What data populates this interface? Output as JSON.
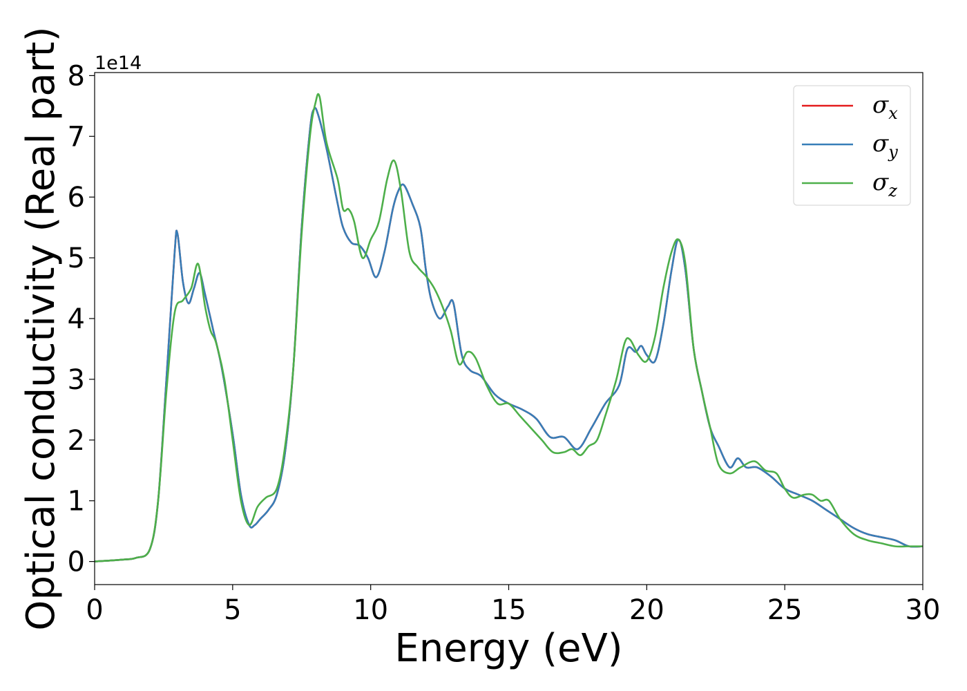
{
  "chart_data": {
    "type": "line",
    "xlabel": "Energy (eV)",
    "ylabel": "Optical conductivity (Real part)",
    "y_offset_label": "1e14",
    "xlim": [
      0,
      30
    ],
    "ylim": [
      -0.38,
      8.05
    ],
    "x_ticks": [
      0,
      5,
      10,
      15,
      20,
      25,
      30
    ],
    "y_ticks": [
      0,
      1,
      2,
      3,
      4,
      5,
      6,
      7,
      8
    ],
    "grid": false,
    "legend_position": "top-right",
    "series": [
      {
        "name": "σx",
        "symbol": "σ",
        "subscript": "x",
        "color": "#e41a1c",
        "x": [
          0,
          1,
          1.5,
          2,
          2.3,
          2.6,
          2.9,
          3.0,
          3.2,
          3.4,
          3.6,
          3.8,
          4.0,
          4.3,
          4.6,
          5.0,
          5.3,
          5.6,
          5.8,
          6.0,
          6.3,
          6.6,
          6.9,
          7.2,
          7.5,
          7.8,
          7.95,
          8.1,
          8.4,
          8.8,
          9.0,
          9.3,
          9.6,
          9.9,
          10.2,
          10.5,
          10.8,
          11.0,
          11.2,
          11.5,
          11.8,
          12.0,
          12.2,
          12.5,
          12.8,
          13.0,
          13.3,
          13.6,
          14.0,
          14.5,
          15.0,
          15.5,
          16.0,
          16.5,
          17.0,
          17.5,
          18.0,
          18.5,
          19.0,
          19.3,
          19.6,
          19.8,
          20.0,
          20.3,
          20.6,
          20.9,
          21.15,
          21.4,
          21.7,
          22.0,
          22.3,
          22.6,
          23.0,
          23.3,
          23.6,
          24.0,
          24.5,
          25.0,
          25.5,
          26.0,
          26.5,
          27.0,
          27.5,
          28.0,
          28.5,
          29.0,
          29.5,
          30.0
        ],
        "values": [
          0,
          0.03,
          0.06,
          0.2,
          1.0,
          3.0,
          5.1,
          5.4,
          4.6,
          4.25,
          4.5,
          4.75,
          4.4,
          3.8,
          3.2,
          2.1,
          1.1,
          0.6,
          0.6,
          0.7,
          0.85,
          1.1,
          1.8,
          3.2,
          5.5,
          7.1,
          7.45,
          7.35,
          6.8,
          5.9,
          5.5,
          5.25,
          5.2,
          5.0,
          4.68,
          5.1,
          5.8,
          6.1,
          6.2,
          5.9,
          5.5,
          4.8,
          4.3,
          4.0,
          4.2,
          4.25,
          3.4,
          3.15,
          3.05,
          2.75,
          2.6,
          2.5,
          2.35,
          2.05,
          2.05,
          1.85,
          2.2,
          2.6,
          2.9,
          3.5,
          3.45,
          3.55,
          3.4,
          3.3,
          3.9,
          4.8,
          5.3,
          4.8,
          3.5,
          2.8,
          2.2,
          1.9,
          1.55,
          1.7,
          1.55,
          1.55,
          1.4,
          1.2,
          1.1,
          1.0,
          0.85,
          0.7,
          0.55,
          0.45,
          0.4,
          0.35,
          0.25,
          0.25
        ]
      },
      {
        "name": "σy",
        "symbol": "σ",
        "subscript": "y",
        "color": "#377eb8",
        "x": [
          0,
          1,
          1.5,
          2,
          2.3,
          2.6,
          2.9,
          3.0,
          3.2,
          3.4,
          3.6,
          3.8,
          4.0,
          4.3,
          4.6,
          5.0,
          5.3,
          5.6,
          5.8,
          6.0,
          6.3,
          6.6,
          6.9,
          7.2,
          7.5,
          7.8,
          7.95,
          8.1,
          8.4,
          8.8,
          9.0,
          9.3,
          9.6,
          9.9,
          10.2,
          10.5,
          10.8,
          11.0,
          11.2,
          11.5,
          11.8,
          12.0,
          12.2,
          12.5,
          12.8,
          13.0,
          13.3,
          13.6,
          14.0,
          14.5,
          15.0,
          15.5,
          16.0,
          16.5,
          17.0,
          17.5,
          18.0,
          18.5,
          19.0,
          19.3,
          19.6,
          19.8,
          20.0,
          20.3,
          20.6,
          20.9,
          21.15,
          21.4,
          21.7,
          22.0,
          22.3,
          22.6,
          23.0,
          23.3,
          23.6,
          24.0,
          24.5,
          25.0,
          25.5,
          26.0,
          26.5,
          27.0,
          27.5,
          28.0,
          28.5,
          29.0,
          29.5,
          30.0
        ],
        "values": [
          0,
          0.03,
          0.06,
          0.2,
          1.0,
          3.0,
          5.1,
          5.4,
          4.6,
          4.25,
          4.5,
          4.75,
          4.4,
          3.8,
          3.2,
          2.1,
          1.1,
          0.6,
          0.6,
          0.7,
          0.85,
          1.1,
          1.8,
          3.2,
          5.5,
          7.1,
          7.45,
          7.35,
          6.8,
          5.9,
          5.5,
          5.25,
          5.2,
          5.0,
          4.68,
          5.1,
          5.8,
          6.1,
          6.2,
          5.9,
          5.5,
          4.8,
          4.3,
          4.0,
          4.2,
          4.25,
          3.4,
          3.15,
          3.05,
          2.75,
          2.6,
          2.5,
          2.35,
          2.05,
          2.05,
          1.85,
          2.2,
          2.6,
          2.9,
          3.5,
          3.45,
          3.55,
          3.4,
          3.3,
          3.9,
          4.8,
          5.3,
          4.8,
          3.5,
          2.8,
          2.2,
          1.9,
          1.55,
          1.7,
          1.55,
          1.55,
          1.4,
          1.2,
          1.1,
          1.0,
          0.85,
          0.7,
          0.55,
          0.45,
          0.4,
          0.35,
          0.25,
          0.25
        ]
      },
      {
        "name": "σz",
        "symbol": "σ",
        "subscript": "z",
        "color": "#4daf4a",
        "x": [
          0,
          1,
          1.5,
          2,
          2.3,
          2.6,
          2.9,
          3.2,
          3.5,
          3.75,
          4.0,
          4.2,
          4.4,
          4.7,
          5.0,
          5.3,
          5.6,
          5.9,
          6.2,
          6.6,
          6.9,
          7.2,
          7.5,
          7.8,
          8.0,
          8.15,
          8.4,
          8.8,
          9.0,
          9.2,
          9.4,
          9.7,
          10.0,
          10.3,
          10.6,
          10.85,
          11.1,
          11.4,
          11.7,
          12.0,
          12.3,
          12.6,
          12.9,
          13.2,
          13.5,
          13.8,
          14.2,
          14.6,
          15.0,
          15.4,
          15.8,
          16.2,
          16.6,
          17.0,
          17.3,
          17.6,
          17.9,
          18.2,
          18.5,
          18.9,
          19.2,
          19.4,
          19.7,
          20.0,
          20.3,
          20.6,
          20.9,
          21.15,
          21.4,
          21.7,
          22.0,
          22.3,
          22.6,
          23.0,
          23.4,
          23.9,
          24.3,
          24.7,
          25.0,
          25.3,
          25.7,
          26.0,
          26.3,
          26.6,
          27.0,
          27.5,
          28.0,
          28.5,
          29.0,
          29.5,
          30.0
        ],
        "values": [
          0,
          0.03,
          0.06,
          0.2,
          1.0,
          2.8,
          4.1,
          4.3,
          4.5,
          4.9,
          4.2,
          3.8,
          3.6,
          3.0,
          2.0,
          1.0,
          0.6,
          0.9,
          1.05,
          1.2,
          1.9,
          3.2,
          5.4,
          7.0,
          7.55,
          7.65,
          6.9,
          6.3,
          5.8,
          5.8,
          5.6,
          5.0,
          5.3,
          5.6,
          6.3,
          6.6,
          6.1,
          5.1,
          4.85,
          4.7,
          4.5,
          4.2,
          3.8,
          3.25,
          3.45,
          3.35,
          2.9,
          2.6,
          2.6,
          2.4,
          2.2,
          2.0,
          1.8,
          1.8,
          1.85,
          1.75,
          1.9,
          2.0,
          2.4,
          3.0,
          3.6,
          3.65,
          3.4,
          3.3,
          3.7,
          4.5,
          5.1,
          5.3,
          4.9,
          3.5,
          2.8,
          2.2,
          1.6,
          1.45,
          1.55,
          1.65,
          1.5,
          1.45,
          1.2,
          1.05,
          1.1,
          1.1,
          1.0,
          1.0,
          0.7,
          0.45,
          0.35,
          0.3,
          0.25,
          0.25,
          0.25
        ]
      }
    ]
  }
}
